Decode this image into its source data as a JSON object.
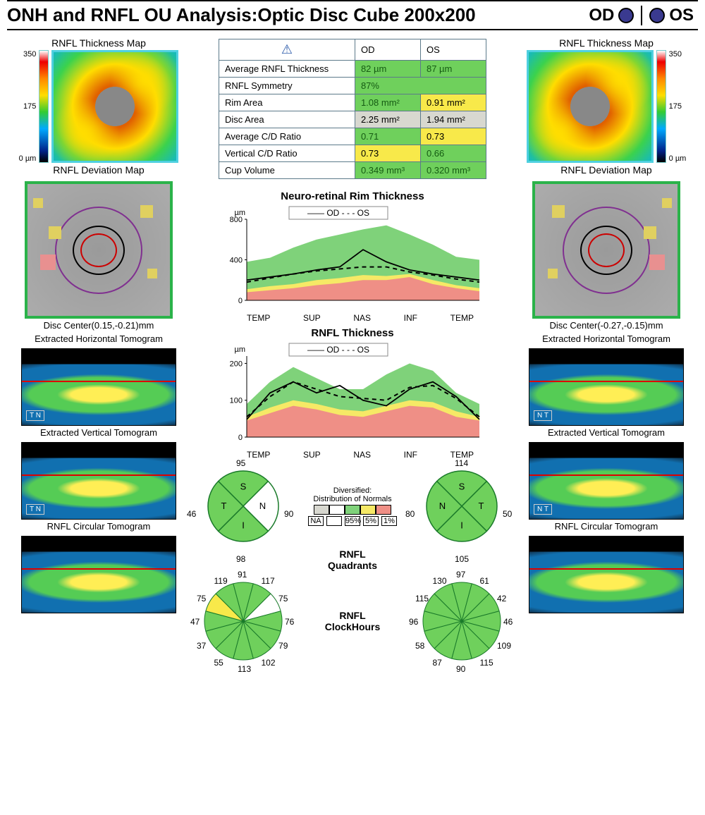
{
  "header": {
    "title": "ONH and RNFL OU Analysis:Optic Disc Cube 200x200",
    "od_label": "OD",
    "os_label": "OS",
    "eye_color": "#3a3a90"
  },
  "colors": {
    "green": "#6fd05c",
    "yellow": "#f8e94a",
    "gray": "#d8d8d0",
    "red": "#e89090",
    "white": "#ffffff",
    "green_text": "#155b13",
    "teal_border": "#4fd0e0",
    "dev_border": "#2bb34a"
  },
  "thickness_scale": {
    "max": "350",
    "mid": "175",
    "min": "0 µm"
  },
  "sections": {
    "thickmap": "RNFL Thickness Map",
    "devmap": "RNFL Deviation Map",
    "disc_center_od": "Disc Center(0.15,-0.21)mm",
    "disc_center_os": "Disc Center(-0.27,-0.15)mm",
    "h_tomo": "Extracted Horizontal Tomogram",
    "v_tomo": "Extracted Vertical Tomogram",
    "c_tomo": "RNFL Circular Tomogram",
    "rim_title": "Neuro-retinal Rim Thickness",
    "rnfl_title": "RNFL Thickness",
    "quadrants": "RNFL\nQuadrants",
    "clockhours": "RNFL\nClockHours",
    "dist_label": "Diversified:\nDistribution of Normals"
  },
  "legend_line": "—— OD  - - -  OS",
  "summary_table": {
    "headers": {
      "param": "",
      "od": "OD",
      "os": "OS"
    },
    "rows": [
      {
        "label": "Average RNFL Thickness",
        "od": {
          "v": "82 µm",
          "c": "cell-green"
        },
        "os": {
          "v": "87 µm",
          "c": "cell-green"
        }
      },
      {
        "label": "RNFL Symmetry",
        "od": {
          "v": "87%",
          "c": "cell-green",
          "span": 2
        }
      },
      {
        "label": "Rim Area",
        "od": {
          "v": "1.08 mm²",
          "c": "cell-green"
        },
        "os": {
          "v": "0.91 mm²",
          "c": "cell-yellow"
        }
      },
      {
        "label": "Disc Area",
        "od": {
          "v": "2.25 mm²",
          "c": "cell-gray"
        },
        "os": {
          "v": "1.94 mm²",
          "c": "cell-gray"
        }
      },
      {
        "label": "Average C/D Ratio",
        "od": {
          "v": "0.71",
          "c": "cell-green"
        },
        "os": {
          "v": "0.73",
          "c": "cell-yellow"
        }
      },
      {
        "label": "Vertical C/D Ratio",
        "od": {
          "v": "0.73",
          "c": "cell-yellow"
        },
        "os": {
          "v": "0.66",
          "c": "cell-green"
        }
      },
      {
        "label": "Cup Volume",
        "od": {
          "v": "0.349 mm³",
          "c": "cell-green"
        },
        "os": {
          "v": "0.320 mm³",
          "c": "cell-green"
        }
      }
    ]
  },
  "rim_chart": {
    "type": "area-line",
    "unit": "µm",
    "y_ticks": [
      0,
      400,
      800
    ],
    "x_labels": [
      "TEMP",
      "SUP",
      "NAS",
      "INF",
      "TEMP"
    ],
    "zones": {
      "green": "#7fd27a",
      "yellow": "#f6e966",
      "red": "#ef8f86"
    },
    "green_upper": [
      380,
      420,
      520,
      600,
      650,
      700,
      740,
      650,
      550,
      430,
      400
    ],
    "yellow_upper": [
      110,
      140,
      160,
      200,
      220,
      250,
      240,
      260,
      200,
      150,
      120
    ],
    "red_upper": [
      80,
      100,
      120,
      150,
      170,
      200,
      200,
      230,
      160,
      120,
      90
    ],
    "od": [
      200,
      230,
      260,
      300,
      330,
      500,
      380,
      300,
      260,
      230,
      200
    ],
    "os": [
      180,
      220,
      260,
      290,
      310,
      330,
      330,
      280,
      250,
      210,
      180
    ],
    "line_colors": {
      "od": "#000",
      "os": "#000"
    },
    "od_dash": "none",
    "os_dash": "6,5"
  },
  "rnfl_chart": {
    "type": "area-line",
    "unit": "µm",
    "y_ticks": [
      0,
      100,
      200
    ],
    "x_labels": [
      "TEMP",
      "SUP",
      "NAS",
      "INF",
      "TEMP"
    ],
    "zones": {
      "green": "#7fd27a",
      "yellow": "#f6e966",
      "red": "#ef8f86"
    },
    "green_upper": [
      90,
      150,
      190,
      160,
      130,
      130,
      170,
      200,
      180,
      120,
      90
    ],
    "yellow_upper": [
      55,
      80,
      100,
      90,
      75,
      70,
      85,
      100,
      95,
      70,
      55
    ],
    "red_upper": [
      45,
      65,
      85,
      75,
      60,
      55,
      70,
      85,
      80,
      55,
      45
    ],
    "od": [
      48,
      120,
      150,
      120,
      140,
      100,
      85,
      130,
      150,
      110,
      48
    ],
    "os": [
      55,
      110,
      150,
      130,
      110,
      105,
      100,
      135,
      140,
      105,
      55
    ]
  },
  "quadrants": {
    "od": {
      "S": 95,
      "T": 46,
      "N": 90,
      "I": 98,
      "colors": {
        "S": "green",
        "T": "green",
        "N": "white",
        "I": "green"
      }
    },
    "os": {
      "S": 114,
      "N": 80,
      "T": 50,
      "I": 105,
      "colors": {
        "S": "green",
        "N": "green",
        "T": "green",
        "I": "green"
      }
    }
  },
  "dist_legend_labels": [
    "NA",
    "",
    "95%",
    "5%",
    "1%"
  ],
  "dist_legend_colors": [
    "#d8d8d0",
    "#ffffff",
    "#7fd27a",
    "#f6e966",
    "#ef8f86"
  ],
  "clockhours": {
    "od": {
      "values": {
        "12": 119,
        "1": 91,
        "2": 117,
        "3": 75,
        "4": 76,
        "5": 79,
        "6": 102,
        "7": 113,
        "8": 55,
        "9": 37,
        "10": 47,
        "11": 75
      },
      "colors": {
        "12": "green",
        "1": "green",
        "2": "green",
        "3": "white",
        "4": "green",
        "5": "green",
        "6": "green",
        "7": "green",
        "8": "green",
        "9": "green",
        "10": "green",
        "11": "yellow"
      }
    },
    "os": {
      "values": {
        "12": 130,
        "1": 97,
        "2": 61,
        "3": 42,
        "4": 46,
        "5": 109,
        "6": 115,
        "7": 90,
        "8": 87,
        "9": 58,
        "10": 96,
        "11": 115
      },
      "colors": {
        "12": "green",
        "1": "green",
        "2": "green",
        "3": "green",
        "4": "green",
        "5": "green",
        "6": "green",
        "7": "green",
        "8": "green",
        "9": "green",
        "10": "green",
        "11": "green"
      }
    }
  },
  "tomo_orient": {
    "od_h": "T  N",
    "od_v": "T  N",
    "os_h": "N  T",
    "os_v": "N  T"
  }
}
